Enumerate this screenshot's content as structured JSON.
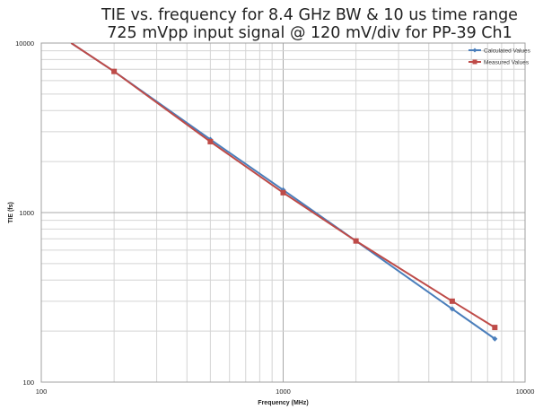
{
  "chart_data": {
    "type": "line",
    "title": "TIE vs. frequency for 8.4 GHz BW & 10 us time range",
    "subtitle": "725 mVpp input signal @ 120 mV/div for PP-39 Ch1",
    "xlabel": "Frequency (MHz)",
    "ylabel": "TIE (fs)",
    "xscale": "log",
    "yscale": "log",
    "xlim": [
      100,
      10000
    ],
    "ylim": [
      100,
      10000
    ],
    "x_ticks": [
      "100",
      "1000",
      "10000"
    ],
    "y_ticks": [
      "100",
      "1000",
      "10000"
    ],
    "grid": true,
    "legend_position": "top-right",
    "series": [
      {
        "name": "Calculated Values",
        "color": "#4a7ebb",
        "marker": "diamond",
        "x": [
          133,
          200,
          500,
          1000,
          2000,
          5000,
          7500
        ],
        "y": [
          10000,
          6800,
          2700,
          1360,
          680,
          270,
          180
        ]
      },
      {
        "name": "Measured Values",
        "color": "#be4b48",
        "marker": "square",
        "x": [
          133,
          200,
          500,
          1000,
          2000,
          5000,
          7500
        ],
        "y": [
          10000,
          6800,
          2620,
          1310,
          680,
          300,
          210
        ]
      }
    ]
  }
}
